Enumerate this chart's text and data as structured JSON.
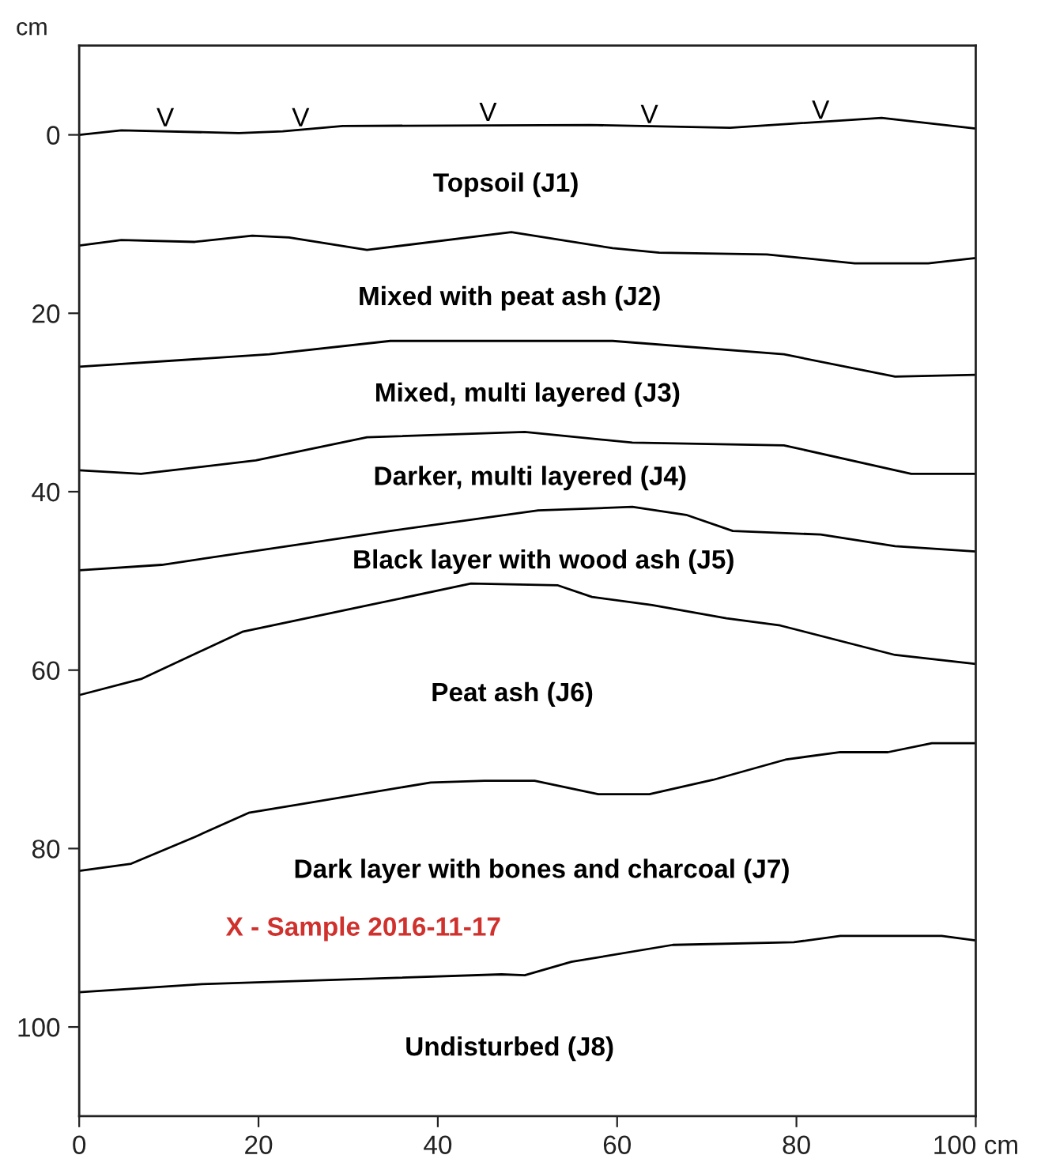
{
  "chart_data": {
    "type": "line",
    "ylabel": "cm",
    "xlim": [
      0,
      100
    ],
    "ylim": [
      110,
      -10
    ],
    "xticks": [
      0,
      20,
      40,
      60,
      80,
      {
        "value": 100,
        "label": "100 cm"
      }
    ],
    "yticks": [
      0,
      20,
      40,
      60,
      80,
      100
    ],
    "grid": false,
    "legend": false,
    "series": [
      {
        "color": "#000000",
        "x": [
          0,
          4.7,
          17.8,
          22.7,
          29.4,
          57,
          72.6,
          89.5,
          100
        ],
        "values": [
          0,
          -0.5,
          -0.2,
          -0.4,
          -1,
          -1.1,
          -0.8,
          -1.9,
          -0.7
        ]
      },
      {
        "color": "#000000",
        "x": [
          0,
          4.7,
          12.9,
          19.3,
          23.4,
          32.1,
          48.2,
          59.5,
          64.7,
          76.7,
          86.5,
          94.7,
          100
        ],
        "values": [
          12.4,
          11.8,
          12.0,
          11.3,
          11.5,
          12.9,
          10.9,
          12.7,
          13.2,
          13.4,
          14.4,
          14.4,
          13.8
        ]
      },
      {
        "color": "#000000",
        "x": [
          0,
          21.2,
          34.7,
          59.5,
          78.6,
          91,
          100
        ],
        "values": [
          26.0,
          24.6,
          23.1,
          23.1,
          24.6,
          27.1,
          26.9
        ]
      },
      {
        "color": "#000000",
        "x": [
          0,
          6.9,
          19.7,
          32.1,
          49.7,
          61.7,
          78.6,
          92.8,
          100
        ],
        "values": [
          37.6,
          38.0,
          36.5,
          33.9,
          33.3,
          34.5,
          34.8,
          38.0,
          38.0
        ]
      },
      {
        "color": "#000000",
        "x": [
          0,
          9.2,
          34.7,
          51.2,
          61.7,
          67.7,
          72.9,
          82.7,
          91,
          100
        ],
        "values": [
          48.8,
          48.2,
          44.4,
          42.1,
          41.7,
          42.6,
          44.4,
          44.8,
          46.1,
          46.7
        ]
      },
      {
        "color": "#000000",
        "x": [
          0,
          6.9,
          18.2,
          43.7,
          53.4,
          57.2,
          63.9,
          72.2,
          78.2,
          91,
          100
        ],
        "values": [
          62.8,
          61.0,
          55.7,
          50.3,
          50.5,
          51.8,
          52.7,
          54.2,
          55.0,
          58.3,
          59.3
        ]
      },
      {
        "color": "#000000",
        "x": [
          0,
          5.8,
          12.9,
          18.9,
          39.2,
          45.2,
          50.8,
          57.9,
          63.6,
          70.7,
          78.9,
          84.9,
          90.2,
          95.1,
          100
        ],
        "values": [
          82.5,
          81.7,
          78.7,
          76.0,
          72.6,
          72.4,
          72.4,
          73.9,
          73.9,
          72.3,
          70.0,
          69.2,
          69.2,
          68.2,
          68.2
        ]
      },
      {
        "color": "#000000",
        "x": [
          0,
          13.7,
          47.1,
          49.7,
          54.9,
          66.2,
          79.7,
          84.9,
          96.2,
          100
        ],
        "values": [
          96.1,
          95.2,
          94.1,
          94.2,
          92.7,
          90.8,
          90.5,
          89.8,
          89.8,
          90.3
        ]
      }
    ],
    "annotations": [
      "V",
      "V",
      "V",
      "V",
      "V",
      "Topsoil (J1)",
      "Mixed with peat ash (J2)",
      "Mixed, multi layered (J3)",
      "Darker, multi layered (J4)",
      "Black layer with wood ash (J5)",
      "Peat ash (J6)",
      "Dark layer with bones and charcoal (J7)",
      "X - Sample 2016-11-17",
      "Undisturbed (J8)"
    ]
  }
}
